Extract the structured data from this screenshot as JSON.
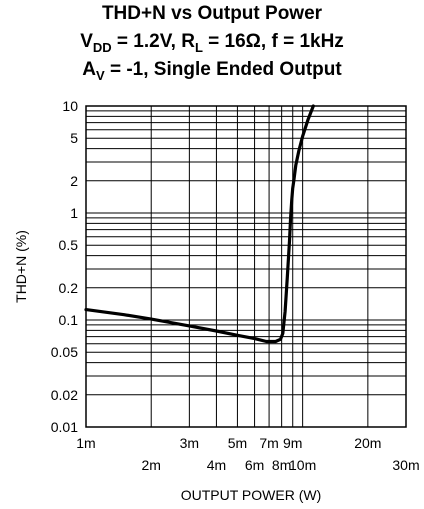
{
  "chart_data": {
    "type": "line",
    "title": {
      "line1": "THD+N vs Output Power",
      "line2_vdd_prefix": "V",
      "line2_vdd_sub": "DD",
      "line2_mid": " = 1.2V, R",
      "line2_rl_sub": "L",
      "line2_end": " = 16Ω, f = 1kHz",
      "line3_av_prefix": "A",
      "line3_av_sub": "V",
      "line3_end": " = -1, Single Ended Output"
    },
    "xlabel": "OUTPUT POWER (W)",
    "ylabel": "THD+N (%)",
    "x_scale": "log",
    "y_scale": "log",
    "xlim": [
      0.001,
      0.03
    ],
    "ylim": [
      0.01,
      10
    ],
    "grid": true,
    "x_ticks_upper": [
      {
        "value": 0.001,
        "label": "1m"
      },
      {
        "value": 0.003,
        "label": "3m"
      },
      {
        "value": 0.005,
        "label": "5m"
      },
      {
        "value": 0.007,
        "label": "7m"
      },
      {
        "value": 0.009,
        "label": "9m"
      },
      {
        "value": 0.02,
        "label": "20m"
      }
    ],
    "x_ticks_lower": [
      {
        "value": 0.002,
        "label": "2m"
      },
      {
        "value": 0.004,
        "label": "4m"
      },
      {
        "value": 0.006,
        "label": "6m"
      },
      {
        "value": 0.008,
        "label": "8m"
      },
      {
        "value": 0.01,
        "label": "10m"
      },
      {
        "value": 0.03,
        "label": "30m"
      }
    ],
    "y_ticks": [
      {
        "value": 10,
        "label": "10"
      },
      {
        "value": 5,
        "label": "5"
      },
      {
        "value": 2,
        "label": "2"
      },
      {
        "value": 1,
        "label": "1"
      },
      {
        "value": 0.5,
        "label": "0.5"
      },
      {
        "value": 0.2,
        "label": "0.2"
      },
      {
        "value": 0.1,
        "label": "0.1"
      },
      {
        "value": 0.05,
        "label": "0.05"
      },
      {
        "value": 0.02,
        "label": "0.02"
      },
      {
        "value": 0.01,
        "label": "0.01"
      }
    ],
    "series": [
      {
        "x": [
          0.001,
          0.0015,
          0.002,
          0.003,
          0.004,
          0.005,
          0.006,
          0.0068,
          0.0075,
          0.0079,
          0.0081,
          0.0083,
          0.0085,
          0.0087,
          0.0088,
          0.0089,
          0.009,
          0.0091,
          0.0093,
          0.0096,
          0.01,
          0.0106,
          0.0112
        ],
        "y": [
          0.125,
          0.112,
          0.102,
          0.088,
          0.079,
          0.072,
          0.067,
          0.063,
          0.063,
          0.066,
          0.075,
          0.12,
          0.25,
          0.55,
          0.9,
          1.3,
          1.7,
          2.0,
          2.8,
          3.8,
          5.2,
          7.5,
          10
        ]
      }
    ]
  }
}
